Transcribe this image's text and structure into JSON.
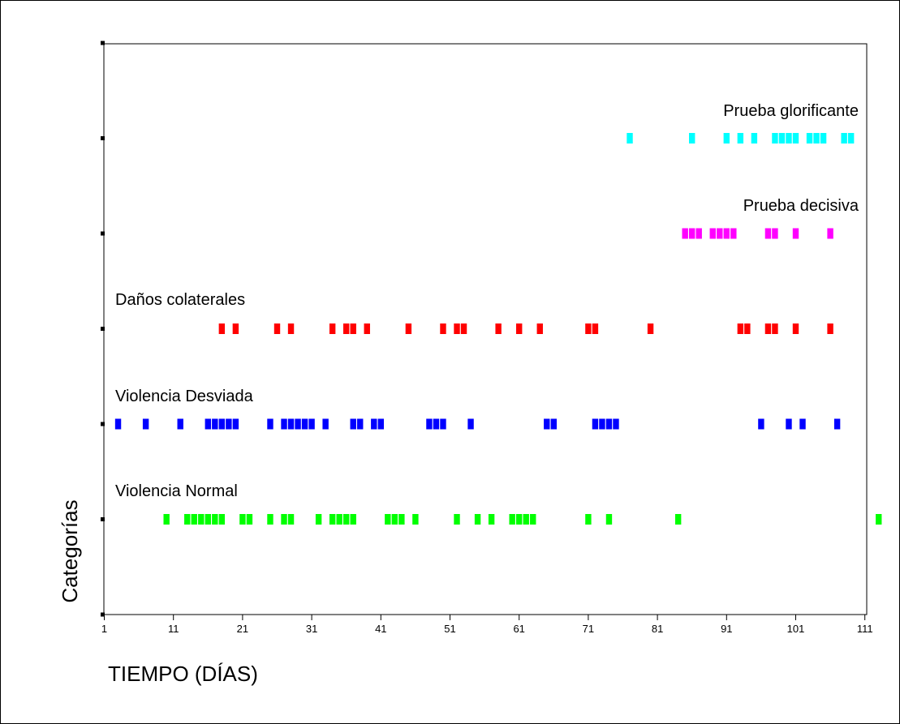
{
  "chart_data": {
    "type": "scatter",
    "xlabel": "TIEMPO (DÍAS)",
    "ylabel": "Categorías",
    "xlim": [
      1,
      113
    ],
    "x_ticks": [
      1,
      11,
      21,
      31,
      41,
      51,
      61,
      71,
      81,
      91,
      101,
      111
    ],
    "y_ticks": [
      0,
      1,
      2,
      3,
      4,
      5,
      6
    ],
    "grid": false,
    "legend": "none",
    "series": [
      {
        "name": "Violencia Normal",
        "level": 1,
        "color": "#00ff00",
        "x": [
          10,
          13,
          14,
          15,
          16,
          17,
          18,
          21,
          22,
          25,
          27,
          28,
          32,
          34,
          35,
          36,
          37,
          42,
          43,
          44,
          46,
          52,
          55,
          57,
          60,
          61,
          62,
          63,
          71,
          74,
          84,
          113
        ]
      },
      {
        "name": "Violencia Desviada",
        "level": 2,
        "color": "#0000ff",
        "x": [
          3,
          7,
          12,
          16,
          17,
          18,
          19,
          20,
          25,
          27,
          28,
          29,
          30,
          31,
          33,
          37,
          38,
          40,
          41,
          48,
          49,
          50,
          54,
          65,
          66,
          72,
          73,
          74,
          75,
          96,
          100,
          102,
          107
        ]
      },
      {
        "name": "Daños colaterales",
        "level": 3,
        "color": "#ff0000",
        "x": [
          18,
          20,
          26,
          28,
          34,
          36,
          37,
          39,
          45,
          50,
          52,
          53,
          58,
          61,
          64,
          71,
          72,
          80,
          93,
          94,
          97,
          98,
          101,
          106
        ]
      },
      {
        "name": "Prueba decisiva",
        "level": 4,
        "color": "#ff00ff",
        "x": [
          85,
          86,
          87,
          89,
          90,
          91,
          92,
          97,
          98,
          101,
          106
        ]
      },
      {
        "name": "Prueba glorificante",
        "level": 5,
        "color": "#00ffff",
        "x": [
          77,
          86,
          91,
          93,
          95,
          98,
          99,
          100,
          101,
          103,
          104,
          105,
          108,
          109
        ]
      }
    ]
  }
}
